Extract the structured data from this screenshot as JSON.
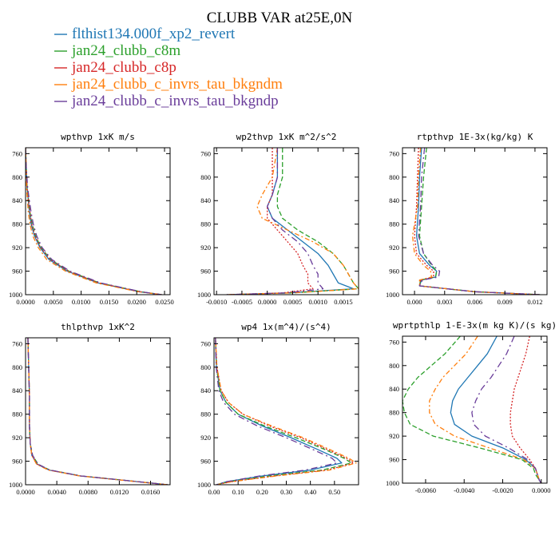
{
  "figure": {
    "title": "CLUBB VAR at25E,0N",
    "legend": [
      {
        "label": "flthist134.000f_xp2_revert",
        "color": "#1f77b4"
      },
      {
        "label": "jan24_clubb_c8m",
        "color": "#2ca02c"
      },
      {
        "label": "jan24_clubb_c8p",
        "color": "#d62728"
      },
      {
        "label": "jan24_clubb_c_invrs_tau_bkgndm",
        "color": "#ff7f0e"
      },
      {
        "label": "jan24_clubb_c_invrs_tau_bkgndp",
        "color": "#6a3d9a"
      }
    ]
  },
  "chart_data": [
    {
      "type": "line",
      "title": "wpthvp  1xK m/s",
      "xlim": [
        0.0,
        0.026
      ],
      "ylim": [
        1000,
        750
      ],
      "y_reversed": true,
      "xticks": [
        0.0,
        0.005,
        0.01,
        0.015,
        0.02,
        0.025
      ],
      "xtick_labels": [
        "0.0000",
        "0.0050",
        "0.0100",
        "0.0150",
        "0.0200",
        "0.0250"
      ],
      "yticks": [
        760,
        800,
        840,
        880,
        920,
        960,
        1000
      ],
      "ytick_labels": [
        "760",
        "800",
        "840",
        "880",
        "920",
        "960",
        "1000"
      ],
      "y": [
        750,
        780,
        820,
        860,
        880,
        900,
        920,
        940,
        960,
        980,
        995,
        1000
      ],
      "series": [
        {
          "style": "solid",
          "x": [
            0.0,
            0.0001,
            0.0003,
            0.0007,
            0.001,
            0.0016,
            0.0026,
            0.0042,
            0.0075,
            0.013,
            0.0205,
            0.0245
          ]
        },
        {
          "style": "dashed",
          "x": [
            0.0,
            0.0001,
            0.0003,
            0.0008,
            0.0012,
            0.0018,
            0.0028,
            0.0045,
            0.0078,
            0.0133,
            0.0207,
            0.0245
          ]
        },
        {
          "style": "dotted",
          "x": [
            0.0,
            0.0001,
            0.0003,
            0.0008,
            0.0011,
            0.0017,
            0.0027,
            0.0044,
            0.0077,
            0.0132,
            0.0206,
            0.0245
          ]
        },
        {
          "style": "dashdot",
          "x": [
            0.0,
            0.0001,
            0.0002,
            0.0005,
            0.0008,
            0.0013,
            0.0023,
            0.0038,
            0.0072,
            0.0127,
            0.0203,
            0.0245
          ]
        },
        {
          "style": "dash",
          "x": [
            0.0,
            0.0001,
            0.0004,
            0.001,
            0.0014,
            0.002,
            0.003,
            0.0047,
            0.008,
            0.0135,
            0.0208,
            0.0245
          ]
        }
      ]
    },
    {
      "type": "line",
      "title": "wp2thvp  1xK m^2/s^2",
      "xlim": [
        -0.00105,
        0.0018
      ],
      "ylim": [
        1000,
        750
      ],
      "y_reversed": true,
      "xticks": [
        -0.001,
        -0.0005,
        0.0,
        0.0005,
        0.001,
        0.0015
      ],
      "xtick_labels": [
        "-0.0010",
        "-0.0005",
        "0.0000",
        "0.0005",
        "0.0010",
        "0.0015"
      ],
      "yticks": [
        760,
        800,
        840,
        880,
        920,
        960,
        1000
      ],
      "ytick_labels": [
        "760",
        "800",
        "840",
        "880",
        "920",
        "960",
        "1000"
      ],
      "y": [
        750,
        800,
        830,
        850,
        870,
        890,
        910,
        930,
        950,
        965,
        980,
        990,
        997,
        1000
      ],
      "series": [
        {
          "style": "solid",
          "x": [
            0.0002,
            0.0002,
            0.0001,
            0.0,
            0.0001,
            0.0004,
            0.0007,
            0.001,
            0.0012,
            0.0013,
            0.0014,
            0.0017,
            0.0004,
            -0.0008
          ]
        },
        {
          "style": "dashed",
          "x": [
            0.0003,
            0.0003,
            0.0002,
            0.0002,
            0.0003,
            0.0006,
            0.001,
            0.0013,
            0.0015,
            0.0016,
            0.0017,
            0.0018,
            0.0005,
            -0.0008
          ]
        },
        {
          "style": "dotted",
          "x": [
            0.0001,
            0.0001,
            0.0001,
            0.0,
            0.0,
            0.0002,
            0.0004,
            0.0006,
            0.0007,
            0.0008,
            0.0008,
            0.0009,
            0.0003,
            -0.0008
          ]
        },
        {
          "style": "dashdot",
          "x": [
            0.0002,
            0.0001,
            -0.0001,
            -0.0002,
            -0.0001,
            0.0004,
            0.0009,
            0.0013,
            0.0015,
            0.0016,
            0.0017,
            0.0018,
            0.0005,
            -0.0008
          ]
        },
        {
          "style": "dash",
          "x": [
            0.0002,
            0.0002,
            0.0001,
            0.0,
            0.0001,
            0.0003,
            0.0006,
            0.0008,
            0.0009,
            0.001,
            0.001,
            0.0011,
            0.0004,
            -0.0008
          ]
        }
      ]
    },
    {
      "type": "line",
      "title": "rtpthvp  1E-3x(kg/kg) K",
      "xlim": [
        -0.0012,
        0.0132
      ],
      "ylim": [
        1000,
        750
      ],
      "y_reversed": true,
      "xticks": [
        0.0,
        0.003,
        0.006,
        0.009,
        0.012
      ],
      "xtick_labels": [
        "0.000",
        "0.003",
        "0.006",
        "0.009",
        "0.012"
      ],
      "yticks": [
        760,
        800,
        840,
        880,
        920,
        960,
        1000
      ],
      "ytick_labels": [
        "760",
        "800",
        "840",
        "880",
        "920",
        "960",
        "1000"
      ],
      "y": [
        750,
        800,
        850,
        900,
        930,
        950,
        960,
        970,
        975,
        985,
        995,
        1000
      ],
      "series": [
        {
          "style": "solid",
          "x": [
            0.0007,
            0.0005,
            0.0004,
            0.0002,
            0.0005,
            0.0015,
            0.0022,
            0.0021,
            0.0007,
            0.0005,
            0.006,
            0.0125
          ]
        },
        {
          "style": "dashed",
          "x": [
            0.0012,
            0.0009,
            0.0007,
            0.0005,
            0.0009,
            0.0017,
            0.0022,
            0.0021,
            0.0006,
            0.0005,
            0.006,
            0.0125
          ]
        },
        {
          "style": "dotted",
          "x": [
            0.0004,
            0.0003,
            0.0002,
            0.0,
            0.0002,
            0.0012,
            0.0019,
            0.0019,
            0.0006,
            0.0005,
            0.006,
            0.0125
          ]
        },
        {
          "style": "dashdot",
          "x": [
            0.0006,
            0.0004,
            0.0003,
            -0.0002,
            0.0,
            0.0009,
            0.0016,
            0.0017,
            0.0005,
            0.0005,
            0.006,
            0.0125
          ]
        },
        {
          "style": "dash",
          "x": [
            0.001,
            0.0007,
            0.0006,
            0.0004,
            0.0009,
            0.0018,
            0.0025,
            0.0024,
            0.0008,
            0.0005,
            0.006,
            0.0125
          ]
        }
      ]
    },
    {
      "type": "line",
      "title": "thlpthvp  1xK^2",
      "xlim": [
        0.0,
        0.0185
      ],
      "ylim": [
        1000,
        750
      ],
      "y_reversed": true,
      "xticks": [
        0.0,
        0.004,
        0.008,
        0.012,
        0.016
      ],
      "xtick_labels": [
        "0.0000",
        "0.0040",
        "0.0080",
        "0.0120",
        "0.0160"
      ],
      "yticks": [
        760,
        800,
        840,
        880,
        920,
        960,
        1000
      ],
      "ytick_labels": [
        "760",
        "800",
        "840",
        "880",
        "920",
        "960",
        "1000"
      ],
      "y": [
        750,
        800,
        850,
        900,
        930,
        950,
        965,
        975,
        985,
        993,
        1000
      ],
      "series": [
        {
          "style": "solid",
          "x": [
            0.0003,
            0.0004,
            0.0005,
            0.0005,
            0.0006,
            0.0008,
            0.0015,
            0.003,
            0.007,
            0.013,
            0.0182
          ]
        },
        {
          "style": "dashed",
          "x": [
            0.0003,
            0.0004,
            0.0005,
            0.0005,
            0.0006,
            0.0009,
            0.0016,
            0.0031,
            0.0071,
            0.0131,
            0.0182
          ]
        },
        {
          "style": "dotted",
          "x": [
            0.0003,
            0.0004,
            0.0005,
            0.0005,
            0.0006,
            0.0008,
            0.0015,
            0.003,
            0.007,
            0.013,
            0.0182
          ]
        },
        {
          "style": "dashdot",
          "x": [
            0.0003,
            0.0004,
            0.0005,
            0.0005,
            0.0006,
            0.0008,
            0.0014,
            0.0029,
            0.0069,
            0.0129,
            0.0182
          ]
        },
        {
          "style": "dash",
          "x": [
            0.0003,
            0.0004,
            0.0005,
            0.0005,
            0.0006,
            0.0009,
            0.0016,
            0.0031,
            0.0071,
            0.0131,
            0.0182
          ]
        }
      ]
    },
    {
      "type": "line",
      "title": "wp4  1x(m^4)/(s^4)",
      "xlim": [
        0.0,
        0.6
      ],
      "ylim": [
        1000,
        750
      ],
      "y_reversed": true,
      "xticks": [
        0.0,
        0.1,
        0.2,
        0.3,
        0.4,
        0.5
      ],
      "xtick_labels": [
        "0.00",
        "0.10",
        "0.20",
        "0.30",
        "0.40",
        "0.50"
      ],
      "yticks": [
        760,
        800,
        840,
        880,
        920,
        960,
        1000
      ],
      "ytick_labels": [
        "760",
        "800",
        "840",
        "880",
        "920",
        "960",
        "1000"
      ],
      "y": [
        750,
        800,
        840,
        860,
        880,
        900,
        920,
        940,
        955,
        963,
        975,
        985,
        995,
        1000
      ],
      "series": [
        {
          "style": "solid",
          "x": [
            0.006,
            0.01,
            0.025,
            0.05,
            0.1,
            0.2,
            0.32,
            0.43,
            0.51,
            0.53,
            0.4,
            0.2,
            0.05,
            0.01
          ]
        },
        {
          "style": "dashed",
          "x": [
            0.006,
            0.01,
            0.025,
            0.05,
            0.1,
            0.21,
            0.34,
            0.46,
            0.54,
            0.57,
            0.45,
            0.23,
            0.06,
            0.01
          ]
        },
        {
          "style": "dotted",
          "x": [
            0.006,
            0.012,
            0.03,
            0.06,
            0.12,
            0.23,
            0.36,
            0.47,
            0.55,
            0.58,
            0.47,
            0.25,
            0.07,
            0.01
          ]
        },
        {
          "style": "dashdot",
          "x": [
            0.006,
            0.012,
            0.03,
            0.06,
            0.12,
            0.24,
            0.37,
            0.48,
            0.56,
            0.59,
            0.48,
            0.26,
            0.07,
            0.01
          ]
        },
        {
          "style": "dash",
          "x": [
            0.006,
            0.009,
            0.02,
            0.04,
            0.085,
            0.18,
            0.3,
            0.41,
            0.49,
            0.51,
            0.38,
            0.19,
            0.05,
            0.01
          ]
        }
      ]
    },
    {
      "type": "line",
      "title": "wprtpthlp  1-E-3x(m kg K)/(s kg)",
      "xlim": [
        -0.0072,
        0.0003
      ],
      "ylim": [
        1000,
        750
      ],
      "y_reversed": true,
      "xticks": [
        -0.006,
        -0.004,
        -0.002,
        0.0
      ],
      "xtick_labels": [
        "-0.0060",
        "-0.0040",
        "-0.0020",
        "0.0000"
      ],
      "yticks": [
        760,
        800,
        840,
        880,
        920,
        960,
        1000
      ],
      "ytick_labels": [
        "760",
        "800",
        "840",
        "880",
        "920",
        "960",
        "1000"
      ],
      "y": [
        750,
        780,
        800,
        820,
        840,
        860,
        880,
        900,
        920,
        940,
        960,
        975,
        985,
        995,
        1000
      ],
      "series": [
        {
          "style": "solid",
          "x": [
            -0.0023,
            -0.0028,
            -0.0033,
            -0.0038,
            -0.0043,
            -0.0046,
            -0.0047,
            -0.0045,
            -0.0036,
            -0.002,
            -0.0008,
            -0.0003,
            -0.0002,
            -0.0001,
            0.0
          ]
        },
        {
          "style": "dashed",
          "x": [
            -0.0042,
            -0.005,
            -0.0057,
            -0.0064,
            -0.0069,
            -0.0072,
            -0.0071,
            -0.0068,
            -0.0056,
            -0.0032,
            -0.001,
            -0.0004,
            -0.0003,
            -0.0001,
            0.0
          ]
        },
        {
          "style": "dotted",
          "x": [
            -0.0006,
            -0.0008,
            -0.001,
            -0.0012,
            -0.0014,
            -0.0015,
            -0.0016,
            -0.0016,
            -0.0015,
            -0.0011,
            -0.0006,
            -0.0003,
            -0.0002,
            -0.0001,
            0.0
          ]
        },
        {
          "style": "dashdot",
          "x": [
            -0.0033,
            -0.0039,
            -0.0045,
            -0.0051,
            -0.0055,
            -0.0058,
            -0.0058,
            -0.0055,
            -0.0045,
            -0.0027,
            -0.0009,
            -0.0003,
            -0.0002,
            -0.0001,
            0.0
          ]
        },
        {
          "style": "dash",
          "x": [
            -0.0014,
            -0.0018,
            -0.0022,
            -0.0026,
            -0.0031,
            -0.0034,
            -0.0036,
            -0.0035,
            -0.0029,
            -0.0017,
            -0.0007,
            -0.0003,
            -0.0002,
            -0.0001,
            0.0
          ]
        }
      ]
    }
  ]
}
